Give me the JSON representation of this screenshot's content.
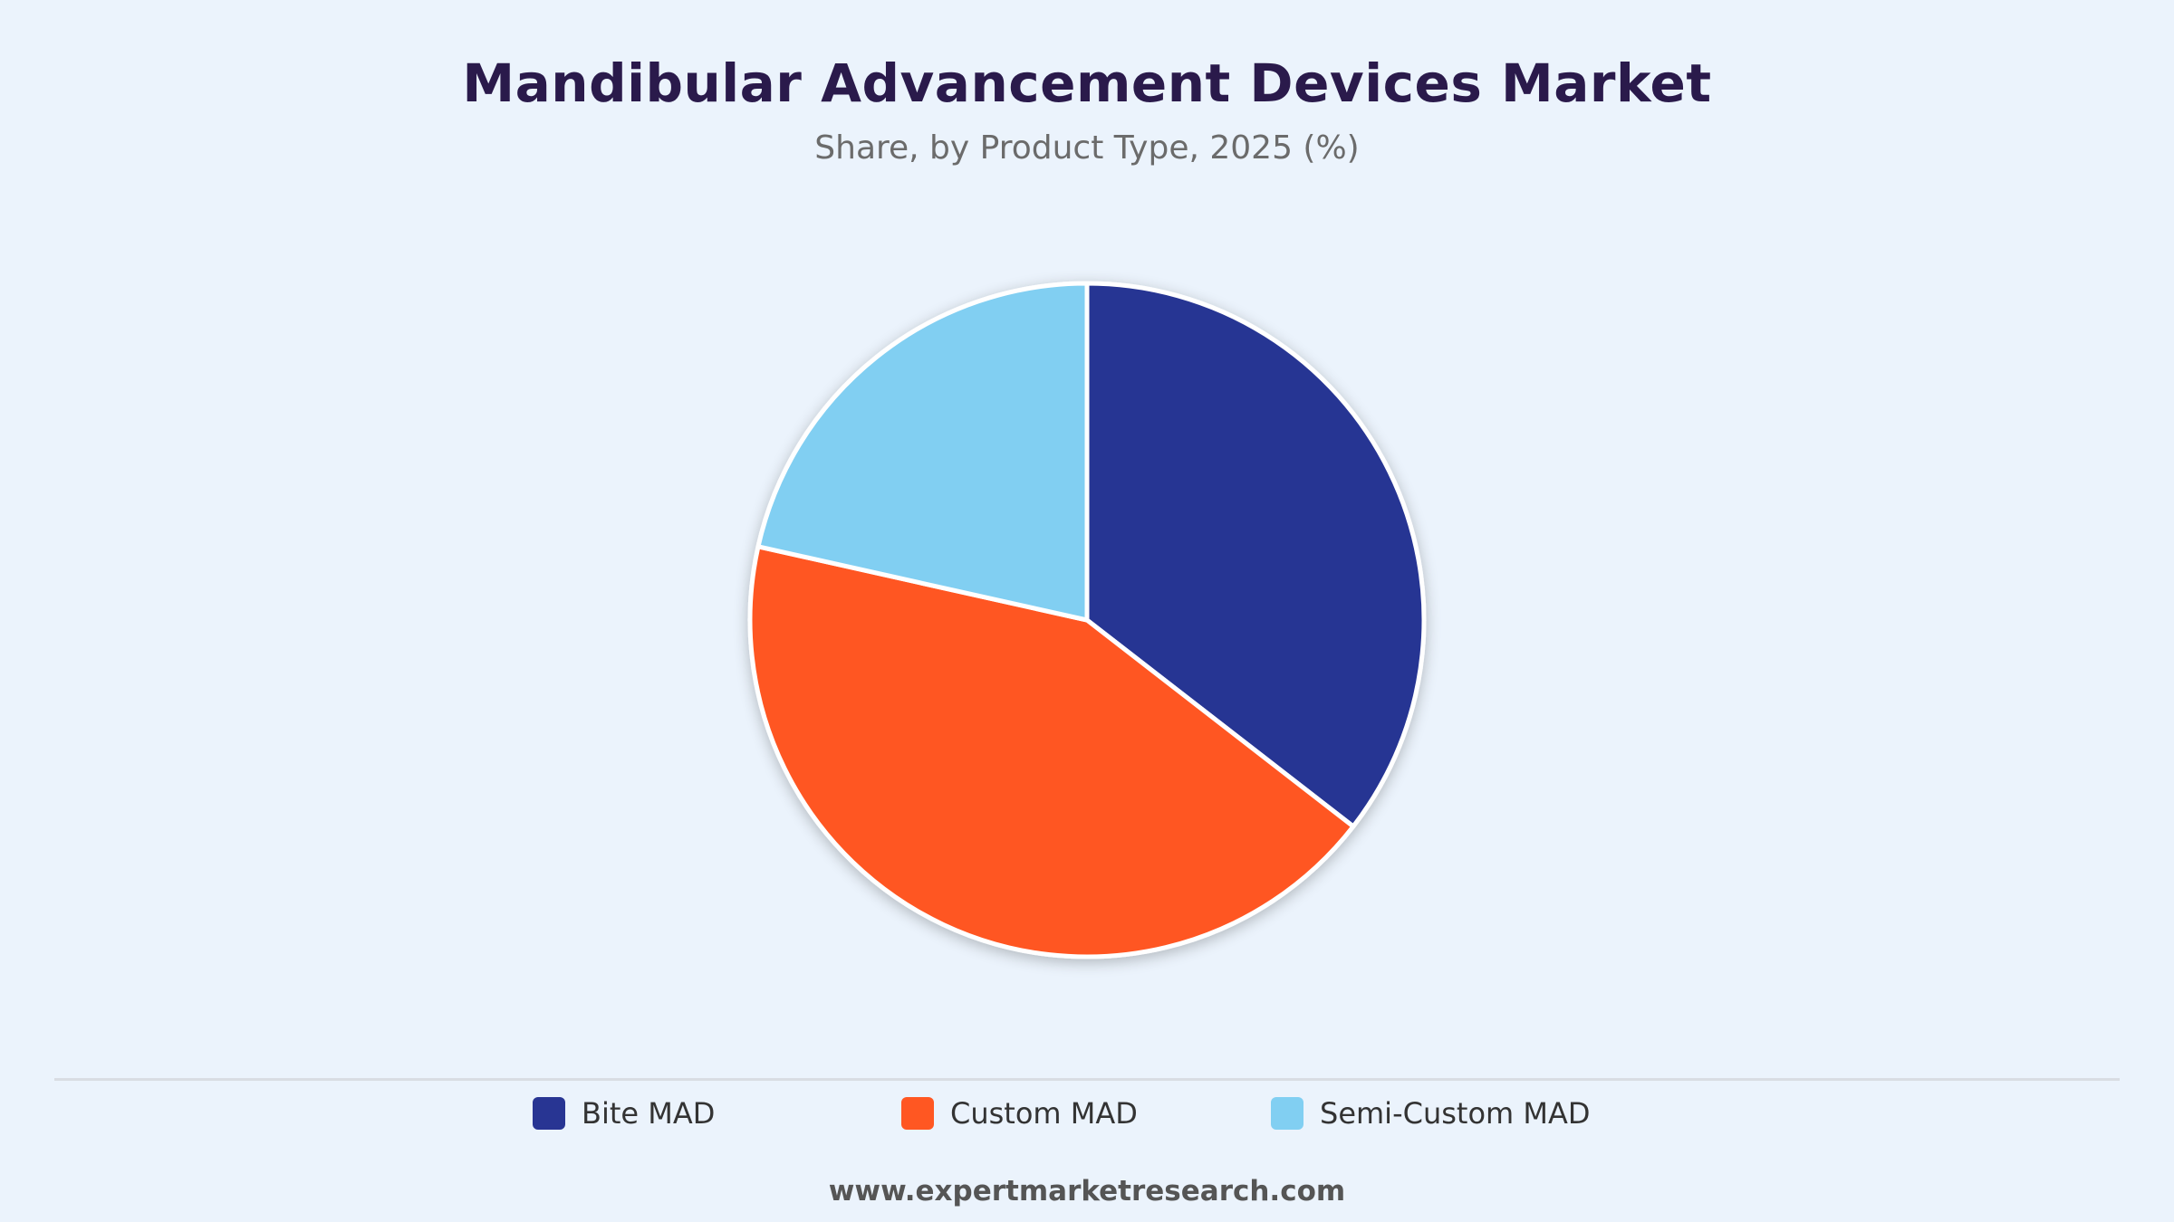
{
  "chart_data": {
    "type": "pie",
    "title": "Mandibular Advancement Devices Market",
    "subtitle": "Share, by Product Type, 2025 (%)",
    "categories": [
      "Bite MAD",
      "Custom MAD",
      "Semi-Custom MAD"
    ],
    "values": [
      35.5,
      43.0,
      21.5
    ],
    "colors": [
      "#283593",
      "#ff5722",
      "#81cff2"
    ],
    "start_angle_deg": 0,
    "direction": "clockwise",
    "legend_position": "bottom"
  },
  "footer": {
    "source": "www.expertmarketresearch.com"
  }
}
